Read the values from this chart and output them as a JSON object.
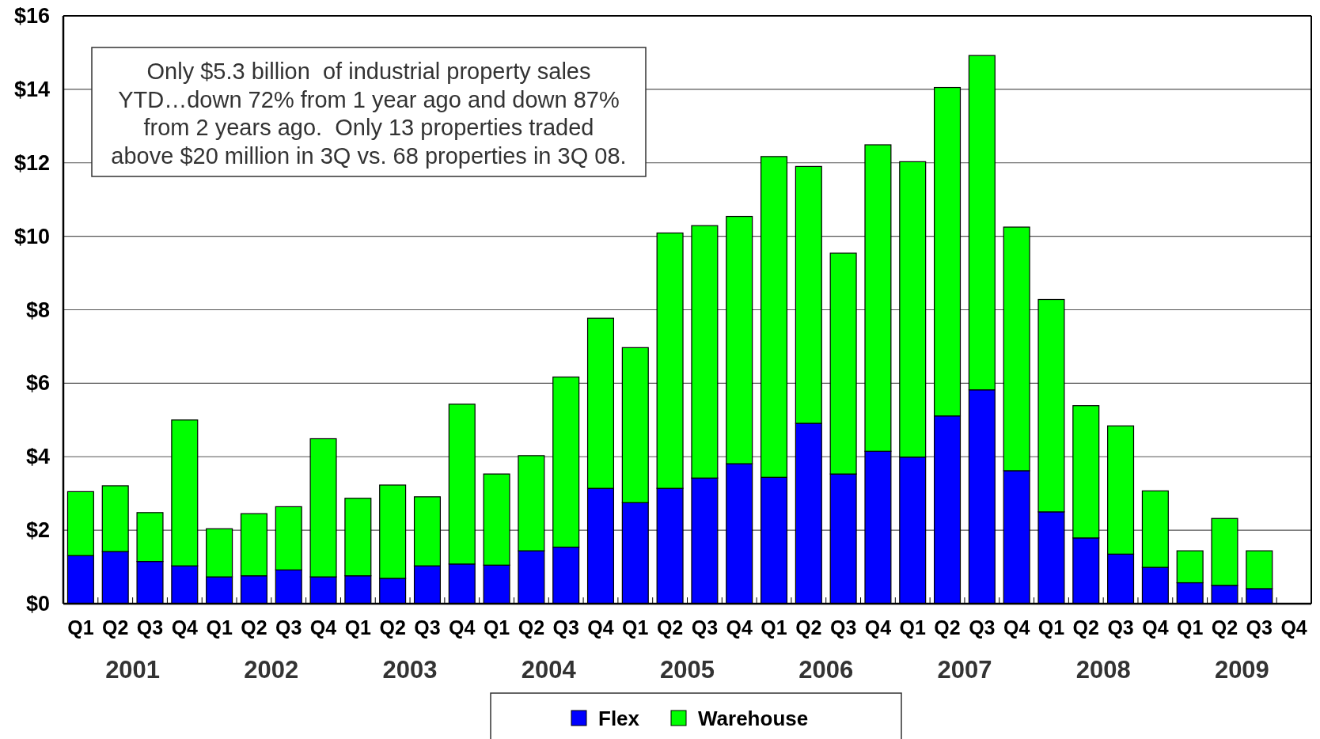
{
  "chart_data": {
    "type": "bar",
    "stacked": true,
    "categories": [
      "Q1",
      "Q2",
      "Q3",
      "Q4",
      "Q1",
      "Q2",
      "Q3",
      "Q4",
      "Q1",
      "Q2",
      "Q3",
      "Q4",
      "Q1",
      "Q2",
      "Q3",
      "Q4",
      "Q1",
      "Q2",
      "Q3",
      "Q4",
      "Q1",
      "Q2",
      "Q3",
      "Q4",
      "Q1",
      "Q2",
      "Q3",
      "Q4",
      "Q1",
      "Q2",
      "Q3",
      "Q4",
      "Q1",
      "Q2",
      "Q3",
      "Q4"
    ],
    "series": [
      {
        "name": "Flex",
        "color": "#0000ff",
        "values": [
          1.31,
          1.42,
          1.15,
          1.03,
          0.73,
          0.76,
          0.92,
          0.73,
          0.76,
          0.69,
          1.03,
          1.08,
          1.05,
          1.44,
          1.54,
          3.14,
          2.75,
          3.14,
          3.42,
          3.81,
          3.44,
          4.91,
          3.53,
          4.15,
          3.99,
          5.11,
          5.82,
          3.62,
          2.5,
          1.79,
          1.35,
          0.99,
          0.57,
          0.5,
          0.41,
          null
        ]
      },
      {
        "name": "Warehouse",
        "color": "#00ff00",
        "values": [
          1.74,
          1.79,
          1.33,
          3.97,
          1.31,
          1.69,
          1.72,
          3.76,
          2.11,
          2.54,
          1.88,
          4.35,
          2.48,
          2.59,
          4.63,
          4.63,
          4.22,
          6.95,
          6.87,
          6.73,
          8.73,
          6.99,
          6.01,
          8.34,
          8.04,
          8.94,
          9.1,
          6.63,
          5.78,
          3.6,
          3.49,
          2.08,
          0.87,
          1.82,
          1.03,
          null
        ]
      }
    ],
    "ylim": [
      0,
      16
    ],
    "yticks": [
      {
        "value": 0,
        "label": "$0"
      },
      {
        "value": 2,
        "label": "$2"
      },
      {
        "value": 4,
        "label": "$4"
      },
      {
        "value": 6,
        "label": "$6"
      },
      {
        "value": 8,
        "label": "$8"
      },
      {
        "value": 10,
        "label": "$10"
      },
      {
        "value": 12,
        "label": "$12"
      },
      {
        "value": 14,
        "label": "$14"
      },
      {
        "value": 16,
        "label": "$16"
      }
    ],
    "grid": "y",
    "legend": "bottom",
    "annotations": [
      "Only $5.3 billion  of industrial property sales\nYTD…down 72% from 1 year ago and down 87%\nfrom 2 years ago.  Only 13 properties traded\nabove $20 million in 3Q vs. 68 properties in 3Q 08.",
      "2001",
      "2002",
      "2003",
      "2004",
      "2005",
      "2006",
      "2007",
      "2008",
      "2009"
    ]
  }
}
